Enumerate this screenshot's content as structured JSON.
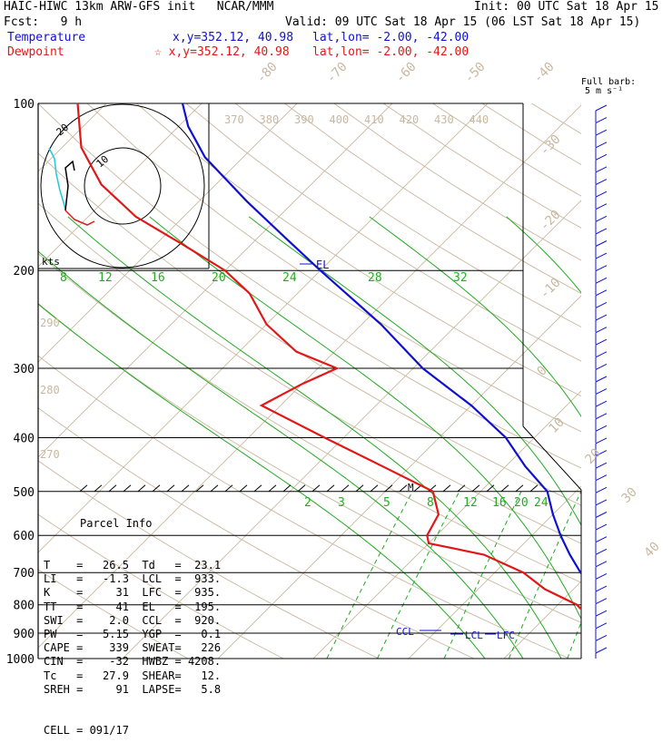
{
  "header": {
    "title": "HAIC-HIWC 13km ARW-GFS init   NCAR/MMM",
    "init": "Init: 00 UTC Sat 18 Apr 15",
    "fcst": "Fcst:   9 h",
    "valid": "Valid: 09 UTC Sat 18 Apr 15 (06 LST Sat 18 Apr 15)",
    "temp_label": "Temperature",
    "temp_xy": "x,y=352.12, 40.98",
    "temp_latlon": "lat,lon= -2.00, -42.00",
    "dew_label": "Dewpoint",
    "dew_xy": "☆ x,y=352.12, 40.98",
    "dew_latlon": "lat,lon= -2.00, -42.00"
  },
  "barb_legend": {
    "line1": "Full barb:",
    "line2": "5 m s⁻¹"
  },
  "hodograph": {
    "ring_labels": [
      "10",
      "20"
    ],
    "unit": "kts"
  },
  "markers": {
    "el": "EL",
    "m": "M",
    "ccl": "CCL",
    "lcl": "LCL",
    "lfc": "LFC"
  },
  "parcel": {
    "title": "Parcel Info",
    "rows": [
      {
        "a": "T",
        "av": "26.5",
        "b": "Td",
        "bv": "23.1"
      },
      {
        "a": "LI",
        "av": "-1.3",
        "b": "LCL",
        "bv": "933."
      },
      {
        "a": "K",
        "av": "31",
        "b": "LFC",
        "bv": "935."
      },
      {
        "a": "TT",
        "av": "41",
        "b": "EL",
        "bv": "195."
      },
      {
        "a": "SWI",
        "av": "2.0",
        "b": "CCL",
        "bv": "920."
      },
      {
        "a": "PW",
        "av": "5.15",
        "b": "YGP",
        "bv": "0.1"
      },
      {
        "a": "CAPE",
        "av": "339",
        "b": "SWEAT",
        "bv": "226"
      },
      {
        "a": "CIN",
        "av": "-32",
        "b": "HWBZ",
        "bv": "4208."
      },
      {
        "a": "Tc",
        "av": "27.9",
        "b": "SHEAR",
        "bv": "12."
      },
      {
        "a": "SREH",
        "av": "91",
        "b": "LAPSE",
        "bv": "5.8"
      }
    ],
    "cell": "CELL = 091/17"
  },
  "colors": {
    "temperature": "#1010d0",
    "dewpoint": "#e01818",
    "isotherm": "#c8b8a0",
    "dry_adiabat": "#c8b8a0",
    "moist_adiabat": "#22aa22",
    "mixing_ratio": "#22aa22",
    "barb": "#1010d0",
    "hodo_cyan": "#22c8d8"
  },
  "chart_data": {
    "type": "line",
    "title": "",
    "xlabel": "",
    "ylabel": "",
    "y_scale": "log-pressure",
    "pressure_levels": [
      100,
      200,
      300,
      400,
      500,
      600,
      700,
      800,
      900,
      1000
    ],
    "pressure_level_labels": [
      "100",
      "200",
      "300",
      "400",
      "500",
      "600",
      "700",
      "800",
      "900",
      "1000"
    ],
    "isotherm_labels": [
      "-80",
      "-70",
      "-60",
      "-50",
      "-40",
      "-30",
      "-20",
      "-10",
      "0",
      "10",
      "20",
      "30",
      "40"
    ],
    "dry_adiabat_labels": [
      "370",
      "380",
      "390",
      "400",
      "410",
      "420",
      "430",
      "440"
    ],
    "theta_side_labels": [
      "290",
      "280",
      "270"
    ],
    "moist_adiabat_labels": [
      "8",
      "12",
      "16",
      "20",
      "24",
      "28",
      "32"
    ],
    "mixing_ratio_labels": [
      "2",
      "3",
      "5",
      "8",
      "12",
      "16",
      "20",
      "24"
    ],
    "series": [
      {
        "name": "Temperature",
        "points": [
          [
            1000,
            27
          ],
          [
            975,
            25
          ],
          [
            950,
            23
          ],
          [
            930,
            22
          ],
          [
            900,
            20.5
          ],
          [
            850,
            18
          ],
          [
            800,
            15
          ],
          [
            750,
            12
          ],
          [
            700,
            9
          ],
          [
            650,
            6
          ],
          [
            600,
            3
          ],
          [
            550,
            0
          ],
          [
            500,
            -3
          ],
          [
            450,
            -8
          ],
          [
            400,
            -13
          ],
          [
            350,
            -20
          ],
          [
            300,
            -29
          ],
          [
            250,
            -38
          ],
          [
            200,
            -50
          ],
          [
            175,
            -57
          ],
          [
            150,
            -65
          ],
          [
            125,
            -74
          ],
          [
            110,
            -79
          ],
          [
            100,
            -82
          ]
        ]
      },
      {
        "name": "Dewpoint",
        "points": [
          [
            1000,
            23
          ],
          [
            975,
            22.5
          ],
          [
            950,
            22
          ],
          [
            930,
            20
          ],
          [
            900,
            17
          ],
          [
            870,
            16.5
          ],
          [
            850,
            15
          ],
          [
            800,
            12
          ],
          [
            750,
            7
          ],
          [
            700,
            3
          ],
          [
            650,
            -3
          ],
          [
            620,
            -10
          ],
          [
            600,
            -11
          ],
          [
            550,
            -12
          ],
          [
            500,
            -15
          ],
          [
            450,
            -23
          ],
          [
            400,
            -32
          ],
          [
            350,
            -42
          ],
          [
            320,
            -40
          ],
          [
            300,
            -38
          ],
          [
            280,
            -44
          ],
          [
            250,
            -50
          ],
          [
            220,
            -55
          ],
          [
            200,
            -60
          ],
          [
            180,
            -67
          ],
          [
            160,
            -75
          ],
          [
            140,
            -82
          ],
          [
            120,
            -88
          ],
          [
            100,
            -93
          ]
        ]
      }
    ],
    "wind_barbs_count": 45
  }
}
